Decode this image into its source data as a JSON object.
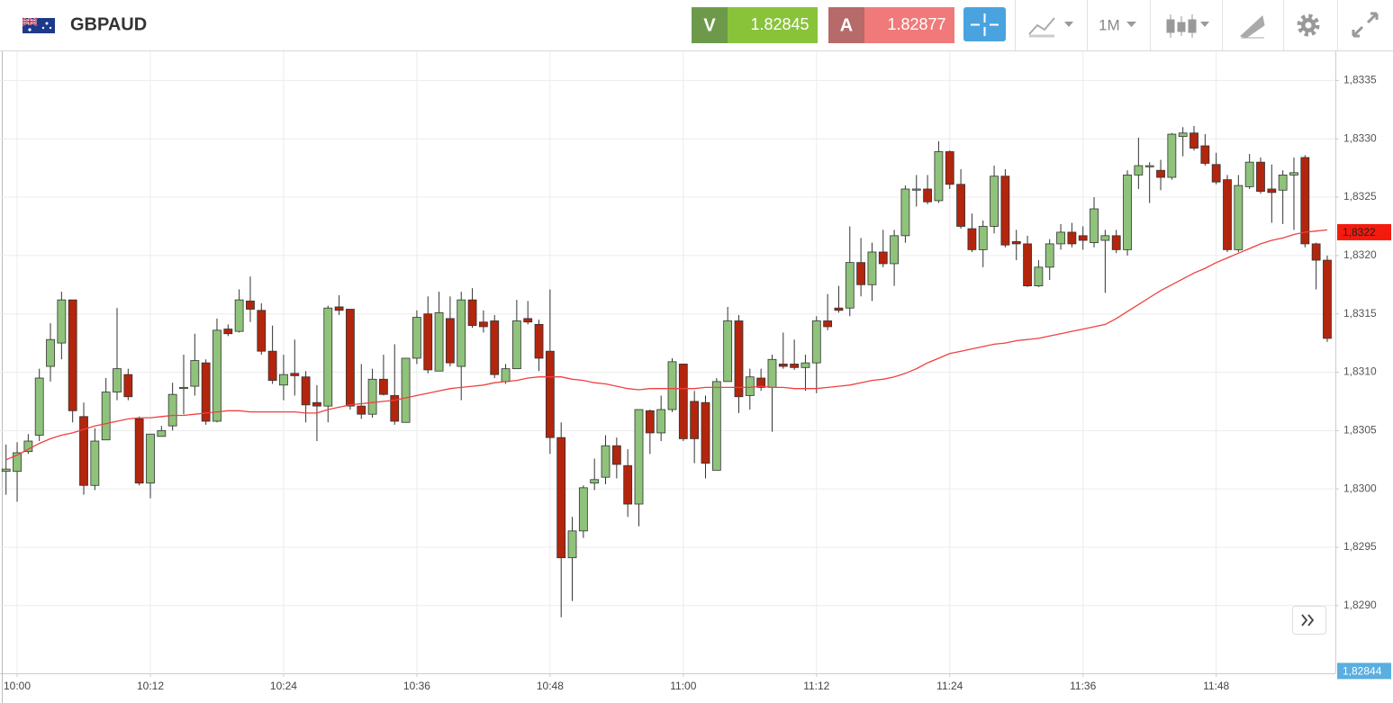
{
  "header": {
    "symbol": "GBPAUD",
    "sell": {
      "label": "V",
      "price": 1.82845
    },
    "buy": {
      "label": "A",
      "price": 1.82877
    },
    "timeframe": "1M"
  },
  "chart_data": {
    "type": "candlestick",
    "categories": [
      null,
      "10:00",
      null,
      null,
      null,
      null,
      null,
      null,
      null,
      null,
      null,
      null,
      null,
      "10:12",
      null,
      null,
      null,
      null,
      null,
      null,
      null,
      null,
      null,
      null,
      null,
      "10:24",
      null,
      null,
      null,
      null,
      null,
      null,
      null,
      null,
      null,
      null,
      null,
      "10:36",
      null,
      null,
      null,
      null,
      null,
      null,
      null,
      null,
      null,
      null,
      null,
      "10:48",
      null,
      null,
      null,
      null,
      null,
      null,
      null,
      null,
      null,
      null,
      null,
      "11:00",
      null,
      null,
      null,
      null,
      null,
      null,
      null,
      null,
      null,
      null,
      null,
      "11:12",
      null,
      null,
      null,
      null,
      null,
      null,
      null,
      null,
      null,
      null,
      null,
      "11:24",
      null,
      null,
      null,
      null,
      null,
      null,
      null,
      null,
      null,
      null,
      null,
      "11:36",
      null,
      null,
      null,
      null,
      null,
      null,
      null,
      null,
      null,
      null,
      null,
      "11:48",
      null,
      null,
      null,
      null,
      null,
      null,
      null,
      null,
      null,
      null
    ],
    "open": [
      1.83015,
      1.83015,
      1.83032,
      1.83046,
      1.83105,
      1.83125,
      1.83162,
      1.83062,
      1.83003,
      1.83042,
      1.83083,
      1.83098,
      1.8306,
      1.83005,
      1.83045,
      1.83054,
      1.83086,
      1.83088,
      1.83108,
      1.83058,
      1.83137,
      1.83135,
      1.83161,
      1.83153,
      1.83118,
      1.83089,
      1.83099,
      1.83096,
      1.83074,
      1.83071,
      1.83156,
      1.83154,
      1.83071,
      1.83064,
      1.83094,
      1.8308,
      1.83057,
      1.83112,
      1.8315,
      1.83101,
      1.83146,
      1.83105,
      1.83162,
      1.83143,
      1.83144,
      1.83092,
      1.83103,
      1.83146,
      1.83141,
      1.83118,
      1.83044,
      1.82941,
      1.82964,
      1.83005,
      1.8301,
      1.83037,
      1.8302,
      1.82987,
      1.83067,
      1.83048,
      1.83068,
      1.83107,
      1.83075,
      1.83074,
      1.83016,
      1.83092,
      1.83144,
      1.8308,
      1.83095,
      1.83087,
      1.83107,
      1.83107,
      1.83104,
      1.83108,
      1.83144,
      1.83155,
      1.83155,
      1.83194,
      1.83175,
      1.83203,
      1.83193,
      1.83217,
      1.83256,
      1.83257,
      1.83247,
      1.83289,
      1.83261,
      1.83223,
      1.83205,
      1.83225,
      1.83268,
      1.83212,
      1.8321,
      1.83174,
      1.8319,
      1.8321,
      1.8322,
      1.83217,
      1.83211,
      1.83213,
      1.83217,
      1.83205,
      1.83269,
      1.83276,
      1.83273,
      1.83267,
      1.83302,
      1.83305,
      1.83294,
      1.83278,
      1.83265,
      1.83205,
      1.83259,
      1.8328,
      1.83257,
      1.83256,
      1.83269,
      1.83284,
      1.8321,
      1.83196
    ],
    "high": [
      1.83038,
      1.8304,
      1.83047,
      1.83103,
      1.83142,
      1.83169,
      1.83162,
      1.83074,
      1.83052,
      1.83095,
      1.83155,
      1.83103,
      1.83062,
      1.83047,
      1.83054,
      1.83091,
      1.83115,
      1.83133,
      1.83111,
      1.83146,
      1.83141,
      1.83171,
      1.83182,
      1.83159,
      1.8314,
      1.83115,
      1.83128,
      1.83101,
      1.83089,
      1.83157,
      1.83166,
      1.83154,
      1.83107,
      1.83103,
      1.83115,
      1.83124,
      1.83112,
      1.83153,
      1.83165,
      1.83169,
      1.83165,
      1.83169,
      1.83172,
      1.83153,
      1.83149,
      1.83107,
      1.83162,
      1.83161,
      1.83145,
      1.83171,
      1.83057,
      1.82976,
      1.83003,
      1.83026,
      1.83046,
      1.83044,
      1.83034,
      1.83068,
      1.83068,
      1.8308,
      1.83112,
      1.83107,
      1.83084,
      1.8308,
      1.83095,
      1.83156,
      1.83149,
      1.83103,
      1.83103,
      1.83115,
      1.83134,
      1.83128,
      1.83115,
      1.83148,
      1.83167,
      1.83174,
      1.83225,
      1.83215,
      1.83211,
      1.83222,
      1.83222,
      1.8326,
      1.83269,
      1.83269,
      1.83298,
      1.8329,
      1.83274,
      1.83236,
      1.8323,
      1.83277,
      1.83274,
      1.83222,
      1.83217,
      1.83196,
      1.83214,
      1.83227,
      1.83228,
      1.83225,
      1.8325,
      1.83222,
      1.83222,
      1.83273,
      1.83301,
      1.8328,
      1.83282,
      1.83305,
      1.8331,
      1.83311,
      1.83304,
      1.83288,
      1.83269,
      1.83269,
      1.83287,
      1.83284,
      1.83278,
      1.83273,
      1.83284,
      1.83286,
      1.83211,
      1.832
    ],
    "low": [
      1.82995,
      1.82989,
      1.8303,
      1.83041,
      1.83092,
      1.83111,
      1.83057,
      1.82995,
      1.82999,
      1.83042,
      1.83076,
      1.83076,
      1.83003,
      1.82992,
      1.83045,
      1.8305,
      1.83064,
      1.8308,
      1.83055,
      1.83057,
      1.83131,
      1.83134,
      1.83143,
      1.83115,
      1.8309,
      1.83076,
      1.8308,
      1.83057,
      1.83041,
      1.83057,
      1.83149,
      1.83068,
      1.8306,
      1.83061,
      1.8308,
      1.83055,
      1.83057,
      1.83107,
      1.83099,
      1.83101,
      1.83105,
      1.83076,
      1.83138,
      1.83134,
      1.83095,
      1.8309,
      1.83103,
      1.83141,
      1.83101,
      1.8303,
      1.8289,
      1.82904,
      1.82958,
      1.82999,
      1.83004,
      1.83009,
      1.82976,
      1.82968,
      1.8303,
      1.83041,
      1.83066,
      1.83041,
      1.83022,
      1.83009,
      1.83016,
      1.83092,
      1.83065,
      1.83068,
      1.83084,
      1.83049,
      1.83103,
      1.83102,
      1.83084,
      1.83082,
      1.83136,
      1.83151,
      1.83148,
      1.83165,
      1.83161,
      1.8319,
      1.83174,
      1.83211,
      1.83242,
      1.83244,
      1.83245,
      1.83257,
      1.83223,
      1.83203,
      1.8319,
      1.83219,
      1.83207,
      1.83196,
      1.83173,
      1.83173,
      1.83179,
      1.83205,
      1.83207,
      1.83205,
      1.83207,
      1.83168,
      1.83202,
      1.832,
      1.83257,
      1.83245,
      1.83256,
      1.83265,
      1.83285,
      1.8329,
      1.83277,
      1.83261,
      1.83203,
      1.83203,
      1.83257,
      1.83253,
      1.83228,
      1.83227,
      1.83222,
      1.83207,
      1.83171,
      1.83126
    ],
    "close": [
      1.83017,
      1.83031,
      1.83041,
      1.83095,
      1.83128,
      1.83162,
      1.83067,
      1.83003,
      1.83041,
      1.83083,
      1.83103,
      1.83079,
      1.83005,
      1.83047,
      1.8305,
      1.83081,
      1.83087,
      1.8311,
      1.83058,
      1.83136,
      1.83133,
      1.83162,
      1.83154,
      1.83118,
      1.83093,
      1.83098,
      1.83097,
      1.83072,
      1.83071,
      1.83155,
      1.83153,
      1.83071,
      1.83064,
      1.83094,
      1.83081,
      1.83058,
      1.83112,
      1.83147,
      1.83102,
      1.83151,
      1.83108,
      1.83162,
      1.8314,
      1.83139,
      1.83098,
      1.83103,
      1.83144,
      1.83143,
      1.83112,
      1.83044,
      1.82941,
      1.82964,
      1.83001,
      1.83008,
      1.83037,
      1.83021,
      1.82987,
      1.83068,
      1.83048,
      1.83068,
      1.83109,
      1.83043,
      1.83043,
      1.83022,
      1.83092,
      1.83144,
      1.83079,
      1.83096,
      1.83087,
      1.83111,
      1.83105,
      1.83104,
      1.83108,
      1.83144,
      1.83139,
      1.83153,
      1.83194,
      1.83175,
      1.83203,
      1.83193,
      1.83217,
      1.83257,
      1.83257,
      1.83246,
      1.83289,
      1.83261,
      1.83225,
      1.83205,
      1.83225,
      1.83268,
      1.83209,
      1.8321,
      1.83174,
      1.8319,
      1.8321,
      1.8322,
      1.8321,
      1.83213,
      1.8324,
      1.83217,
      1.83205,
      1.83269,
      1.83277,
      1.83277,
      1.83267,
      1.83304,
      1.83305,
      1.83292,
      1.83279,
      1.83263,
      1.83205,
      1.8326,
      1.8328,
      1.83255,
      1.83254,
      1.83269,
      1.83271,
      1.8321,
      1.83196,
      1.83129
    ],
    "up_color": "#8fc27a",
    "down_color": "#b3250d",
    "ma": {
      "color": "#f04040",
      "values": [
        1.83025,
        1.83029,
        1.83034,
        1.83039,
        1.83043,
        1.83046,
        1.83048,
        1.83051,
        1.83054,
        1.83056,
        1.83058,
        1.8306,
        1.83061,
        1.83061,
        1.83062,
        1.83063,
        1.83063,
        1.83064,
        1.83065,
        1.83066,
        1.83067,
        1.83067,
        1.83066,
        1.83066,
        1.83066,
        1.83066,
        1.83066,
        1.83065,
        1.83065,
        1.83068,
        1.8307,
        1.83072,
        1.83073,
        1.83074,
        1.83075,
        1.83076,
        1.83078,
        1.8308,
        1.83082,
        1.83084,
        1.83086,
        1.83087,
        1.83088,
        1.83089,
        1.83091,
        1.83092,
        1.83093,
        1.83095,
        1.83096,
        1.83096,
        1.83096,
        1.83094,
        1.83093,
        1.83091,
        1.8309,
        1.83088,
        1.83086,
        1.83085,
        1.83086,
        1.83086,
        1.83086,
        1.83086,
        1.83086,
        1.83087,
        1.83087,
        1.83087,
        1.83087,
        1.83087,
        1.83088,
        1.83087,
        1.83087,
        1.83086,
        1.83086,
        1.83086,
        1.83087,
        1.83088,
        1.83089,
        1.83091,
        1.83093,
        1.83094,
        1.83096,
        1.83099,
        1.83103,
        1.83108,
        1.83112,
        1.83116,
        1.83118,
        1.8312,
        1.83122,
        1.83124,
        1.83125,
        1.83127,
        1.83128,
        1.83129,
        1.83131,
        1.83133,
        1.83135,
        1.83137,
        1.83139,
        1.83141,
        1.83146,
        1.83152,
        1.83158,
        1.83164,
        1.8317,
        1.83175,
        1.8318,
        1.83185,
        1.83189,
        1.83194,
        1.83198,
        1.83202,
        1.83206,
        1.8321,
        1.83213,
        1.83215,
        1.83218,
        1.8322,
        1.83221,
        1.83222
      ]
    },
    "ylim": [
      1.82842,
      1.83375
    ],
    "yticks": [
      {
        "value": 1.829,
        "label": "1,8290"
      },
      {
        "value": 1.8295,
        "label": "1,8295"
      },
      {
        "value": 1.83,
        "label": "1,8300"
      },
      {
        "value": 1.8305,
        "label": "1,8305"
      },
      {
        "value": 1.831,
        "label": "1,8310"
      },
      {
        "value": 1.8315,
        "label": "1,8315"
      },
      {
        "value": 1.832,
        "label": "1,8320"
      },
      {
        "value": 1.8325,
        "label": "1,8325"
      },
      {
        "value": 1.833,
        "label": "1,8330"
      },
      {
        "value": 1.8335,
        "label": "1,8335"
      }
    ],
    "grid": true,
    "last_price": {
      "value": 1.8322,
      "label": "1,8322",
      "color": "#f41a0e"
    },
    "cursor_price": {
      "value": 1.82844,
      "label": "1,82844",
      "color": "#5aaee0"
    }
  }
}
